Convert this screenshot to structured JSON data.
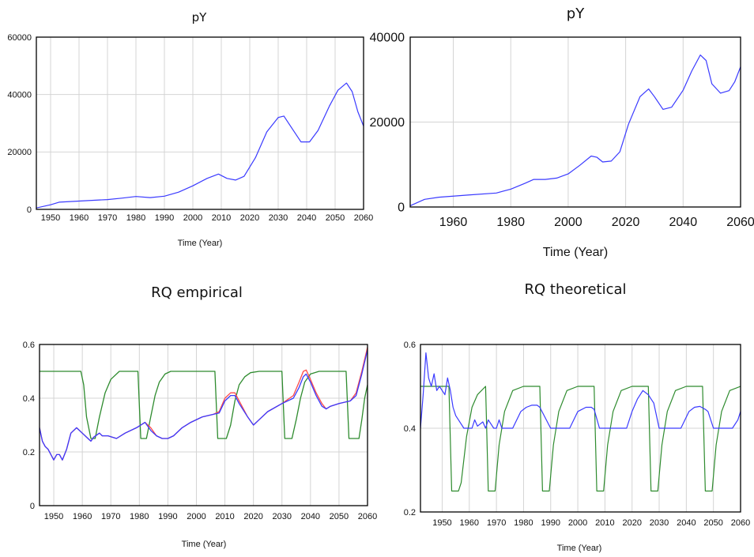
{
  "chart_data": [
    {
      "type": "line",
      "title": "pY",
      "xlabel": "Time (Year)",
      "ylabel": "",
      "xlim": [
        1945,
        2060
      ],
      "ylim": [
        0,
        60000
      ],
      "xticks": [
        1950,
        1960,
        1970,
        1980,
        1990,
        2000,
        2010,
        2020,
        2030,
        2040,
        2050,
        2060
      ],
      "xtick_labels": [
        "1950",
        "1960",
        "1970",
        "1980",
        "1990",
        "2000",
        "2010",
        "2020",
        "2030",
        "2040",
        "2050",
        "2060"
      ],
      "yticks": [
        0,
        20000,
        40000,
        60000
      ],
      "ytick_labels": [
        "0",
        "20000",
        "40000",
        "60000"
      ],
      "grid": true,
      "series": [
        {
          "color": "#3a3aff",
          "x": [
            1945,
            1950,
            1953,
            1960,
            1970,
            1975,
            1980,
            1985,
            1990,
            1995,
            2000,
            2005,
            2009,
            2012,
            2015,
            2018,
            2022,
            2026,
            2030,
            2032,
            2035,
            2038,
            2041,
            2044,
            2048,
            2051,
            2054,
            2056,
            2058,
            2060
          ],
          "y": [
            500,
            1600,
            2500,
            2900,
            3400,
            3900,
            4500,
            4100,
            4600,
            6000,
            8200,
            10800,
            12300,
            10800,
            10200,
            11500,
            18000,
            27000,
            32000,
            32500,
            28000,
            23500,
            23500,
            27500,
            36000,
            41500,
            44000,
            41000,
            34000,
            29000
          ]
        }
      ]
    },
    {
      "type": "line",
      "title": "pY",
      "xlabel": "Time (Year)",
      "ylabel": "",
      "xlim": [
        1945,
        2060
      ],
      "ylim": [
        0,
        40000
      ],
      "xticks": [
        1960,
        1980,
        2000,
        2020,
        2040,
        2060
      ],
      "xtick_labels": [
        "1960",
        "1980",
        "2000",
        "2020",
        "2040",
        "2060"
      ],
      "yticks": [
        0,
        20000,
        40000
      ],
      "ytick_labels": [
        "0",
        "20000",
        "40000"
      ],
      "grid": true,
      "series": [
        {
          "color": "#3a3aff",
          "x": [
            1945,
            1950,
            1955,
            1965,
            1975,
            1980,
            1985,
            1988,
            1992,
            1996,
            2000,
            2004,
            2008,
            2010,
            2012,
            2015,
            2018,
            2021,
            2025,
            2028,
            2030,
            2033,
            2036,
            2040,
            2043,
            2046,
            2048,
            2050,
            2053,
            2056,
            2058,
            2060
          ],
          "y": [
            300,
            1800,
            2300,
            2800,
            3300,
            4200,
            5600,
            6500,
            6500,
            6800,
            7800,
            9800,
            12000,
            11700,
            10600,
            10800,
            13000,
            19500,
            26000,
            27800,
            26000,
            23000,
            23500,
            27500,
            32000,
            35800,
            34500,
            29000,
            26800,
            27400,
            29500,
            33000
          ]
        }
      ]
    },
    {
      "type": "line",
      "title": "RQ empirical",
      "xlabel": "Time (Year)",
      "ylabel": "",
      "xlim": [
        1945,
        2060
      ],
      "ylim": [
        0,
        0.6
      ],
      "xticks": [
        1950,
        1960,
        1970,
        1980,
        1990,
        2000,
        2010,
        2020,
        2030,
        2040,
        2050,
        2060
      ],
      "xtick_labels": [
        "1950",
        "1960",
        "1970",
        "1980",
        "1990",
        "2000",
        "2010",
        "2020",
        "2030",
        "2040",
        "2050",
        "2060"
      ],
      "yticks": [
        0,
        0.2,
        0.4,
        0.6
      ],
      "ytick_labels": [
        "0",
        "0.2",
        "0.4",
        "0.6"
      ],
      "grid": true,
      "series": [
        {
          "color": "#2e8b2e",
          "x": [
            1945,
            1959.5,
            1960.5,
            1961.5,
            1963,
            1964.5,
            1966,
            1968,
            1970,
            1973,
            1979.5,
            1980.5,
            1982.5,
            1984,
            1985.5,
            1987,
            1989,
            1991,
            1994,
            2006.5,
            2007.5,
            2010.5,
            2012,
            2013.5,
            2015,
            2017,
            2019,
            2022,
            2030,
            2031,
            2033.5,
            2035,
            2036.5,
            2038,
            2040,
            2043,
            2052.5,
            2053.5,
            2057,
            2058,
            2059,
            2060
          ],
          "y": [
            0.5,
            0.5,
            0.45,
            0.33,
            0.25,
            0.25,
            0.33,
            0.42,
            0.47,
            0.5,
            0.5,
            0.25,
            0.25,
            0.33,
            0.41,
            0.46,
            0.49,
            0.5,
            0.5,
            0.5,
            0.25,
            0.25,
            0.3,
            0.39,
            0.45,
            0.48,
            0.495,
            0.5,
            0.5,
            0.25,
            0.25,
            0.32,
            0.4,
            0.46,
            0.49,
            0.5,
            0.5,
            0.25,
            0.25,
            0.32,
            0.4,
            0.45
          ]
        },
        {
          "color": "#ff4a4a",
          "x": [
            1945,
            1946,
            1947,
            1948,
            1950,
            1951,
            1952,
            1953,
            1954.5,
            1956,
            1958,
            1960,
            1962,
            1963,
            1964,
            1966,
            1967,
            1969,
            1972,
            1975,
            1979,
            1982,
            1984,
            1986,
            1988,
            1990,
            1992,
            1995,
            1998,
            2002,
            2006,
            2008,
            2010,
            2012,
            2013.5,
            2015,
            2018,
            2020,
            2022,
            2025,
            2030,
            2034,
            2036,
            2037.5,
            2038.5,
            2040,
            2042,
            2044,
            2045.5,
            2047,
            2050,
            2054,
            2056,
            2058,
            2060
          ],
          "y": [
            0.29,
            0.24,
            0.22,
            0.21,
            0.17,
            0.19,
            0.19,
            0.17,
            0.21,
            0.27,
            0.29,
            0.27,
            0.25,
            0.24,
            0.255,
            0.27,
            0.26,
            0.26,
            0.25,
            0.27,
            0.29,
            0.31,
            0.29,
            0.26,
            0.25,
            0.25,
            0.26,
            0.29,
            0.31,
            0.33,
            0.34,
            0.35,
            0.4,
            0.42,
            0.42,
            0.39,
            0.33,
            0.3,
            0.32,
            0.35,
            0.38,
            0.41,
            0.46,
            0.5,
            0.505,
            0.47,
            0.42,
            0.38,
            0.36,
            0.37,
            0.38,
            0.39,
            0.42,
            0.5,
            0.59
          ]
        },
        {
          "color": "#3a3aff",
          "x": [
            1945,
            1946,
            1947,
            1948,
            1950,
            1951,
            1952,
            1953,
            1954.5,
            1956,
            1958,
            1960,
            1962,
            1963,
            1964,
            1966,
            1967,
            1969,
            1972,
            1975,
            1979,
            1982,
            1984,
            1986,
            1988,
            1990,
            1992,
            1995,
            1998,
            2002,
            2006,
            2008,
            2010,
            2012,
            2013.5,
            2015,
            2018,
            2020,
            2022,
            2025,
            2030,
            2034,
            2036,
            2037.5,
            2038.5,
            2040,
            2042,
            2044,
            2045.5,
            2047,
            2050,
            2054,
            2056,
            2058,
            2060
          ],
          "y": [
            0.29,
            0.24,
            0.22,
            0.21,
            0.17,
            0.19,
            0.19,
            0.17,
            0.21,
            0.27,
            0.29,
            0.27,
            0.25,
            0.24,
            0.255,
            0.27,
            0.26,
            0.26,
            0.25,
            0.27,
            0.29,
            0.31,
            0.28,
            0.26,
            0.25,
            0.25,
            0.26,
            0.29,
            0.31,
            0.33,
            0.34,
            0.345,
            0.39,
            0.41,
            0.41,
            0.38,
            0.33,
            0.3,
            0.32,
            0.35,
            0.38,
            0.4,
            0.44,
            0.48,
            0.49,
            0.46,
            0.41,
            0.37,
            0.36,
            0.37,
            0.38,
            0.39,
            0.41,
            0.49,
            0.58
          ]
        }
      ]
    },
    {
      "type": "line",
      "title": "RQ theoretical",
      "xlabel": "Time (Year)",
      "ylabel": "",
      "xlim": [
        1942,
        2060
      ],
      "ylim": [
        0.2,
        0.6
      ],
      "xticks": [
        1950,
        1960,
        1970,
        1980,
        1990,
        2000,
        2010,
        2020,
        2030,
        2040,
        2050,
        2060
      ],
      "xtick_labels": [
        "1950",
        "1960",
        "1970",
        "1980",
        "1990",
        "2000",
        "2010",
        "2020",
        "2030",
        "2040",
        "2050",
        "2060"
      ],
      "yticks": [
        0.2,
        0.4,
        0.6
      ],
      "ytick_labels": [
        "0.2",
        "0.4",
        "0.6"
      ],
      "grid": true,
      "series": [
        {
          "color": "#2e8b2e",
          "x": [
            1942,
            1952.5,
            1953.5,
            1956,
            1957,
            1959,
            1961,
            1963,
            1966,
            1967,
            1969.5,
            1971,
            1973,
            1976,
            1980,
            1986,
            1987,
            1989.5,
            1991,
            1993,
            1996,
            2000,
            2006,
            2007,
            2009.5,
            2011,
            2013,
            2016,
            2020,
            2026,
            2027,
            2029.5,
            2031,
            2033,
            2036,
            2040,
            2046,
            2047,
            2049.5,
            2051,
            2053,
            2056,
            2060
          ],
          "y": [
            0.5,
            0.5,
            0.25,
            0.25,
            0.27,
            0.38,
            0.45,
            0.48,
            0.5,
            0.25,
            0.25,
            0.36,
            0.44,
            0.49,
            0.5,
            0.5,
            0.25,
            0.25,
            0.36,
            0.44,
            0.49,
            0.5,
            0.5,
            0.25,
            0.25,
            0.36,
            0.44,
            0.49,
            0.5,
            0.5,
            0.25,
            0.25,
            0.36,
            0.44,
            0.49,
            0.5,
            0.5,
            0.25,
            0.25,
            0.36,
            0.44,
            0.49,
            0.5
          ]
        },
        {
          "color": "#3a3aff",
          "x": [
            1942,
            1943,
            1944,
            1945,
            1946,
            1947,
            1948,
            1949,
            1951,
            1952,
            1953,
            1954,
            1955,
            1956,
            1958,
            1961,
            1962,
            1963,
            1964,
            1965,
            1966,
            1967,
            1969,
            1970,
            1971,
            1972,
            1973,
            1976,
            1979,
            1981,
            1983,
            1985,
            1986,
            1990,
            1994,
            1997,
            2000,
            2003,
            2005,
            2006,
            2008,
            2015,
            2018,
            2020,
            2022,
            2024,
            2026,
            2027,
            2028,
            2030,
            2035,
            2038,
            2041,
            2043,
            2045,
            2047,
            2048,
            2050,
            2057,
            2059,
            2060
          ],
          "y": [
            0.4,
            0.48,
            0.58,
            0.52,
            0.5,
            0.53,
            0.49,
            0.5,
            0.48,
            0.52,
            0.49,
            0.45,
            0.43,
            0.42,
            0.4,
            0.4,
            0.42,
            0.405,
            0.41,
            0.415,
            0.4,
            0.42,
            0.4,
            0.4,
            0.42,
            0.4,
            0.4,
            0.4,
            0.44,
            0.45,
            0.455,
            0.455,
            0.45,
            0.4,
            0.4,
            0.4,
            0.44,
            0.45,
            0.45,
            0.445,
            0.4,
            0.4,
            0.4,
            0.44,
            0.47,
            0.49,
            0.48,
            0.47,
            0.46,
            0.4,
            0.4,
            0.4,
            0.44,
            0.45,
            0.452,
            0.445,
            0.44,
            0.4,
            0.4,
            0.42,
            0.44
          ]
        }
      ]
    }
  ]
}
